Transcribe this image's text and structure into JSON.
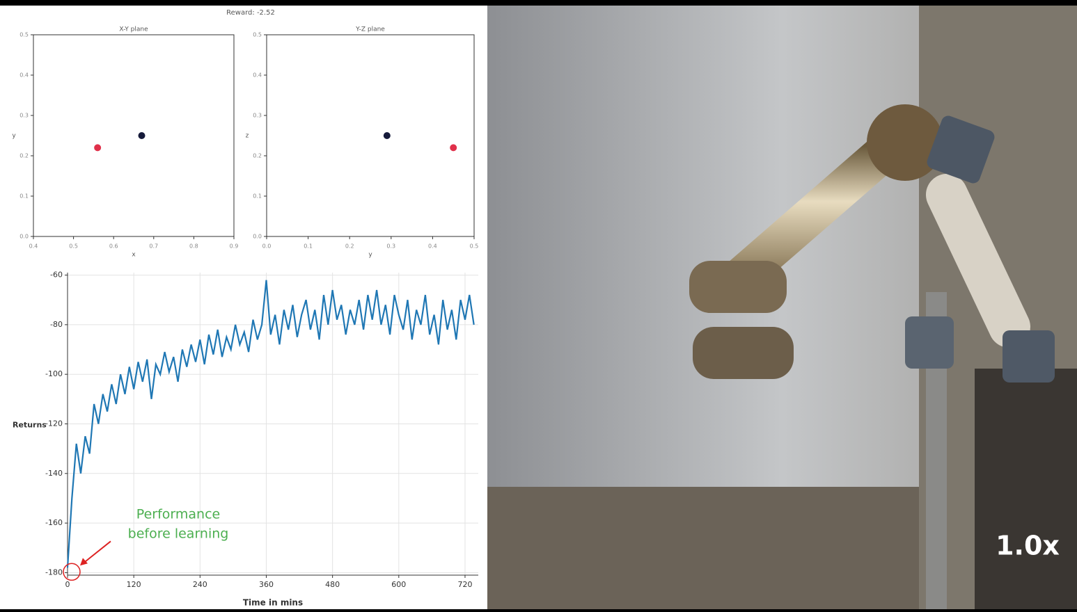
{
  "suptitle": "Reward: -2.52",
  "video": {
    "speed_label": "1.0x"
  },
  "chart_data": [
    {
      "type": "scatter",
      "title": "X-Y plane",
      "x_label": "x",
      "y_label": "y",
      "series": [
        {
          "color": "#e0304a",
          "x": [
            0.56
          ],
          "values": [
            0.22
          ]
        },
        {
          "color": "#151a3a",
          "x": [
            0.67
          ],
          "values": [
            0.25
          ]
        }
      ],
      "xlim": [
        0.4,
        0.9
      ],
      "xticks": [
        0.4,
        0.5,
        0.6,
        0.7,
        0.8,
        0.9
      ],
      "ylim": [
        0,
        0.5
      ],
      "yticks": [
        {
          "value": 0,
          "label": "0.0"
        },
        0.1,
        0.2,
        0.3,
        0.4,
        0.5
      ],
      "grid": false
    },
    {
      "type": "scatter",
      "title": "Y-Z plane",
      "x_label": "y",
      "y_label": "z",
      "series": [
        {
          "color": "#151a3a",
          "x": [
            0.29
          ],
          "values": [
            0.25
          ]
        },
        {
          "color": "#e0304a",
          "x": [
            0.45
          ],
          "values": [
            0.22
          ]
        }
      ],
      "xlim": [
        0,
        0.5
      ],
      "xticks": [
        {
          "value": 0,
          "label": "0.0"
        },
        0.1,
        0.2,
        0.3,
        0.4,
        0.5
      ],
      "ylim": [
        0,
        0.5
      ],
      "yticks": [
        {
          "value": 0,
          "label": "0.0"
        },
        0.1,
        0.2,
        0.3,
        0.4,
        0.5
      ],
      "grid": false
    },
    {
      "type": "line",
      "x_label": "Time in mins",
      "y_label": "Returns",
      "annotation": [
        "Performance",
        "before learning"
      ],
      "annotation_color": "#4caf50",
      "x": [
        0,
        8,
        16,
        24,
        32,
        40,
        48,
        56,
        64,
        72,
        80,
        88,
        96,
        104,
        112,
        120,
        128,
        136,
        144,
        152,
        160,
        168,
        176,
        184,
        192,
        200,
        208,
        216,
        224,
        232,
        240,
        248,
        256,
        264,
        272,
        280,
        288,
        296,
        304,
        312,
        320,
        328,
        336,
        344,
        352,
        360,
        368,
        376,
        384,
        392,
        400,
        408,
        416,
        424,
        432,
        440,
        448,
        456,
        464,
        472,
        480,
        488,
        496,
        504,
        512,
        520,
        528,
        536,
        544,
        552,
        560,
        568,
        576,
        584,
        592,
        600,
        608,
        616,
        624,
        632,
        640,
        648,
        656,
        664,
        672,
        680,
        688,
        696,
        704,
        712,
        720,
        728,
        736
      ],
      "series": [
        {
          "color": "#1f77b4",
          "values": [
            -178,
            -150,
            -128,
            -140,
            -125,
            -132,
            -112,
            -120,
            -108,
            -115,
            -104,
            -112,
            -100,
            -108,
            -97,
            -106,
            -95,
            -103,
            -94,
            -110,
            -96,
            -100,
            -91,
            -99,
            -93,
            -103,
            -90,
            -97,
            -88,
            -95,
            -86,
            -96,
            -84,
            -92,
            -82,
            -93,
            -85,
            -90,
            -80,
            -88,
            -83,
            -91,
            -78,
            -86,
            -80,
            -62,
            -84,
            -76,
            -88,
            -74,
            -82,
            -72,
            -85,
            -76,
            -70,
            -82,
            -74,
            -86,
            -68,
            -80,
            -66,
            -78,
            -72,
            -84,
            -74,
            -80,
            -70,
            -82,
            -68,
            -78,
            -66,
            -80,
            -72,
            -84,
            -68,
            -76,
            -82,
            -70,
            -86,
            -74,
            -80,
            -68,
            -84,
            -76,
            -88,
            -70,
            -82,
            -74,
            -86,
            -70,
            -78,
            -68,
            -80
          ]
        }
      ],
      "xlim": [
        0,
        744
      ],
      "xticks": [
        0,
        120,
        240,
        360,
        480,
        600,
        720
      ],
      "ylim": [
        -181,
        -59
      ],
      "yticks": [
        -180,
        -160,
        -140,
        -120,
        -100,
        -80,
        -60
      ],
      "grid": true
    }
  ]
}
